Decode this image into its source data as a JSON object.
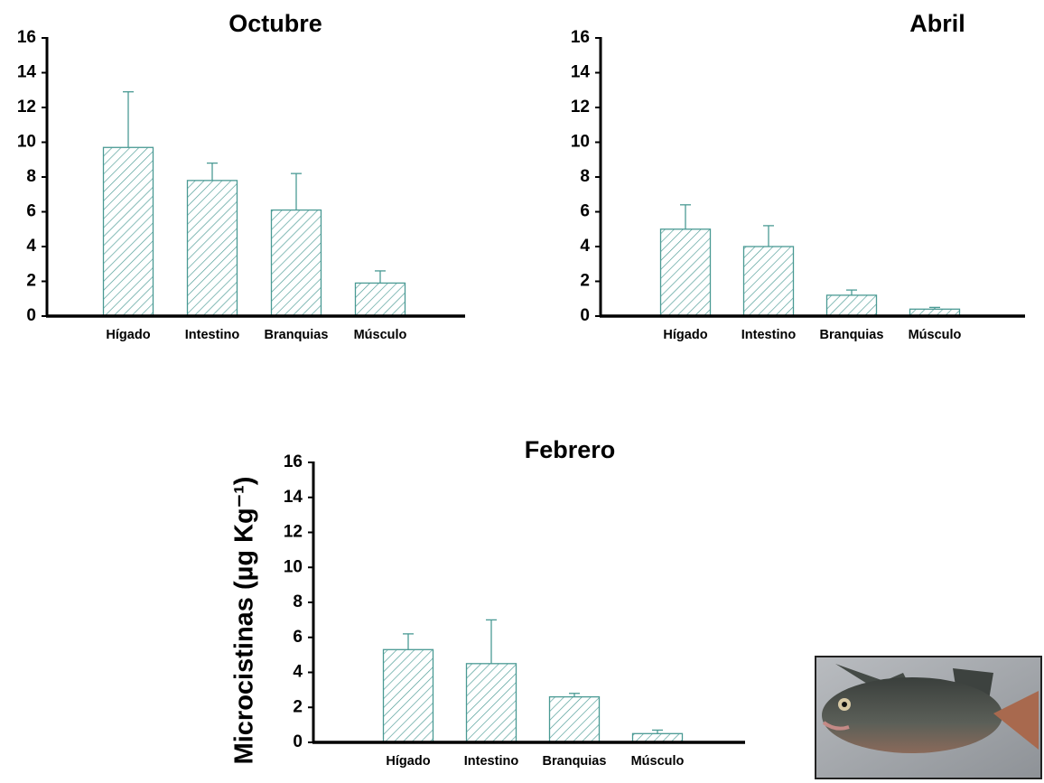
{
  "chart_data": [
    {
      "type": "bar",
      "title": "Octubre",
      "categories": [
        "Hígado",
        "Intestino",
        "Branquias",
        "Músculo"
      ],
      "values": [
        9.7,
        7.8,
        6.1,
        1.9
      ],
      "errors": [
        3.2,
        1.0,
        2.1,
        0.7
      ],
      "color": "#4a9a94",
      "ylim": [
        0,
        16
      ],
      "yticks": [
        0,
        2,
        4,
        6,
        8,
        10,
        12,
        14,
        16
      ]
    },
    {
      "type": "bar",
      "title": "Abril",
      "categories": [
        "Hígado",
        "Intestino",
        "Branquias",
        "Músculo"
      ],
      "values": [
        5.0,
        4.0,
        1.2,
        0.4
      ],
      "errors": [
        1.4,
        1.2,
        0.3,
        0.1
      ],
      "color": "#4a9a94",
      "ylim": [
        0,
        16
      ],
      "yticks": [
        0,
        2,
        4,
        6,
        8,
        10,
        12,
        14,
        16
      ]
    },
    {
      "type": "bar",
      "title": "Febrero",
      "ylabel": "Microcistinas (µg Kg⁻¹)",
      "categories": [
        "Hígado",
        "Intestino",
        "Branquias",
        "Músculo"
      ],
      "values": [
        5.3,
        4.5,
        2.6,
        0.5
      ],
      "errors": [
        0.9,
        2.5,
        0.2,
        0.2
      ],
      "color": "#4a9a94",
      "ylim": [
        0,
        16
      ],
      "yticks": [
        0,
        2,
        4,
        6,
        8,
        10,
        12,
        14,
        16
      ]
    }
  ]
}
